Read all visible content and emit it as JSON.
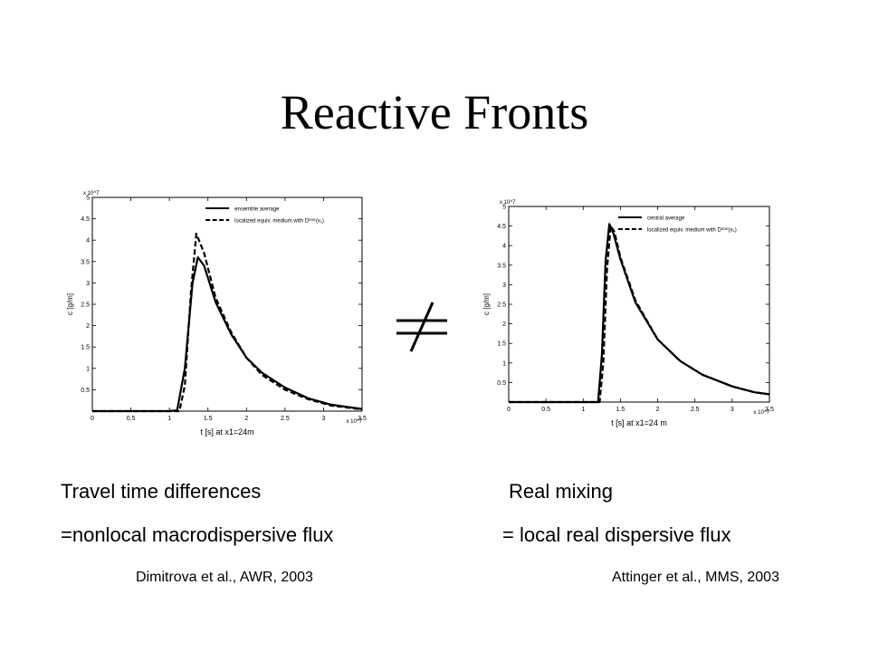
{
  "slide": {
    "title": "Reactive Fronts",
    "neq_symbol": "≠",
    "left_caption_line1": "Travel time differences",
    "left_caption_line2": "=nonlocal macrodispersive flux",
    "left_reference": "Dimitrova et al., AWR, 2003",
    "right_caption_line1": "Real mixing",
    "right_caption_line2": "= local real dispersive flux",
    "right_reference": "Attinger et al., MMS, 2003"
  },
  "chart_data": [
    {
      "type": "line",
      "title": "",
      "xlabel": "t [s] at x1=24m",
      "ylabel": "c [g/m]",
      "x_exponent": "x 10^7",
      "y_exponent": "x 10^7",
      "xlim": [
        0,
        3.5
      ],
      "ylim": [
        0,
        5
      ],
      "xticks": [
        0,
        0.5,
        1,
        1.5,
        2,
        2.5,
        3,
        3.5
      ],
      "yticks": [
        0.5,
        1,
        1.5,
        2,
        2.5,
        3,
        3.5,
        4,
        4.5,
        5
      ],
      "grid": false,
      "legend_position": "top-right",
      "series": [
        {
          "name": "ensemble average",
          "style": "solid",
          "x": [
            0,
            1.0,
            1.1,
            1.2,
            1.3,
            1.37,
            1.45,
            1.6,
            1.8,
            2.0,
            2.2,
            2.5,
            2.8,
            3.1,
            3.5
          ],
          "y": [
            0,
            0,
            0.02,
            1.0,
            3.0,
            3.6,
            3.4,
            2.55,
            1.8,
            1.25,
            0.9,
            0.55,
            0.3,
            0.15,
            0.05
          ]
        },
        {
          "name": "localized equiv. medium with Dᵐᵃᶜ(x₁)",
          "style": "dashed",
          "x": [
            0,
            1.13,
            1.2,
            1.28,
            1.35,
            1.45,
            1.6,
            1.8,
            2.0,
            2.2,
            2.5,
            2.8,
            3.1,
            3.5
          ],
          "y": [
            0,
            0,
            0.6,
            2.8,
            4.15,
            3.7,
            2.65,
            1.85,
            1.25,
            0.85,
            0.5,
            0.28,
            0.13,
            0.04
          ]
        }
      ]
    },
    {
      "type": "line",
      "title": "",
      "xlabel": "t [s] at x1=24 m",
      "ylabel": "c [g/m]",
      "x_exponent": "x 10^7",
      "y_exponent": "x 10^7",
      "xlim": [
        0,
        3.5
      ],
      "ylim": [
        0,
        5
      ],
      "xticks": [
        0,
        0.5,
        1,
        1.5,
        2,
        2.5,
        3,
        3.5
      ],
      "yticks": [
        0.5,
        1,
        1.5,
        2,
        2.5,
        3,
        3.5,
        4,
        4.5,
        5
      ],
      "grid": false,
      "legend_position": "top-right",
      "series": [
        {
          "name": "central average",
          "style": "solid",
          "x": [
            0,
            1.2,
            1.25,
            1.3,
            1.35,
            1.4,
            1.5,
            1.7,
            2.0,
            2.3,
            2.6,
            3.0,
            3.3,
            3.5
          ],
          "y": [
            0,
            0,
            1.2,
            3.6,
            4.55,
            4.35,
            3.65,
            2.55,
            1.6,
            1.05,
            0.7,
            0.4,
            0.25,
            0.2
          ]
        },
        {
          "name": "localized equiv. medium with Dᵐᵃᶜ(x₁)",
          "style": "dashed",
          "x": [
            0,
            1.22,
            1.27,
            1.32,
            1.37,
            1.42,
            1.5,
            1.7,
            2.0,
            2.3,
            2.6,
            3.0,
            3.3,
            3.5
          ],
          "y": [
            0,
            0,
            1.0,
            3.4,
            4.5,
            4.35,
            3.7,
            2.6,
            1.6,
            1.05,
            0.7,
            0.4,
            0.25,
            0.2
          ]
        }
      ]
    }
  ]
}
